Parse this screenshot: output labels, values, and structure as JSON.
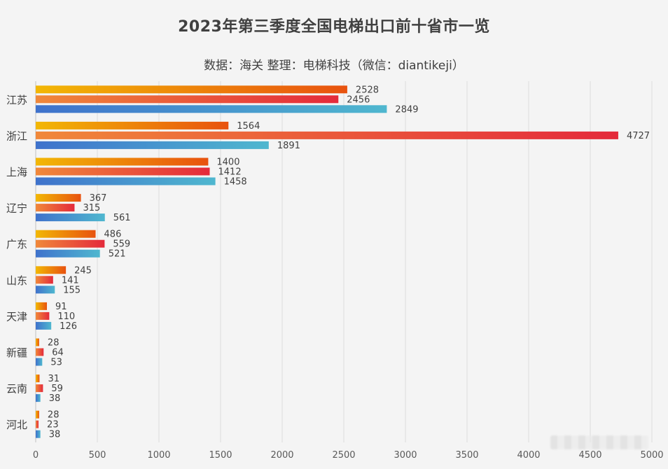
{
  "chart_data": {
    "type": "bar",
    "orientation": "horizontal",
    "title": "2023年第三季度全国电梯出口前十省市一览",
    "subtitle": "数据：海关 整理：电梯科技（微信：diantikeji）",
    "categories": [
      "江苏",
      "浙江",
      "上海",
      "辽宁",
      "广东",
      "山东",
      "天津",
      "新疆",
      "云南",
      "河北"
    ],
    "series": [
      {
        "values": [
          2528,
          1564,
          1400,
          367,
          486,
          245,
          91,
          28,
          31,
          28
        ],
        "color_start": "#f2b705",
        "color_end": "#e8520f"
      },
      {
        "values": [
          2456,
          4727,
          1412,
          315,
          559,
          141,
          110,
          64,
          59,
          23
        ],
        "color_start": "#f0883a",
        "color_end": "#e42a3b"
      },
      {
        "values": [
          2849,
          1891,
          1458,
          561,
          521,
          155,
          126,
          53,
          38,
          38
        ],
        "color_start": "#3f72cc",
        "color_end": "#4fb7cf"
      }
    ],
    "xticks": [
      0,
      500,
      1000,
      1500,
      2000,
      2500,
      3000,
      3500,
      4000,
      4500,
      5000
    ],
    "xlim": [
      0,
      5000
    ],
    "grid": true,
    "legend": "none"
  }
}
